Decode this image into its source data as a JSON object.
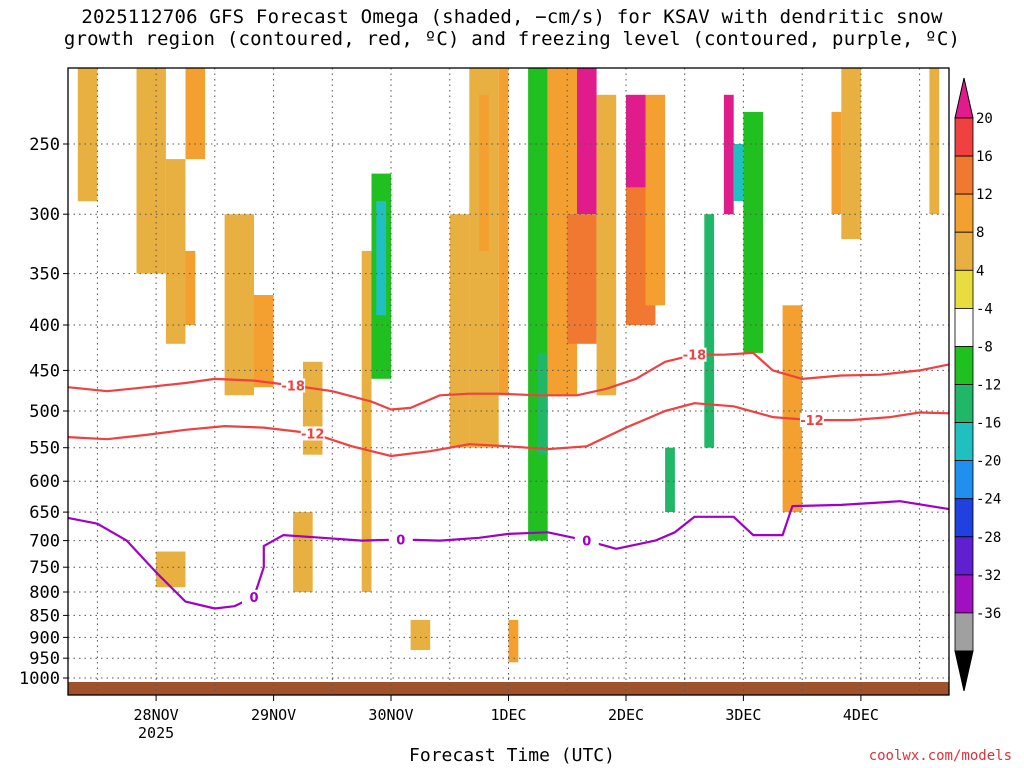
{
  "title": {
    "line1": "2025112706 GFS Forecast Omega (shaded, −cm/s) for KSAV with dendritic snow",
    "line2": "growth region (contoured, red, ºC) and freezing level (contoured, purple, ºC)"
  },
  "credit": "coolwx.com/models",
  "chart_data": {
    "type": "heatmap",
    "xlabel": "Forecast Time (UTC)",
    "ylabel": "",
    "x_ticks": [
      {
        "label": "28NOV",
        "sublabel": "2025",
        "time": "2025-11-28T00"
      },
      {
        "label": "29NOV",
        "sublabel": "",
        "time": "2025-11-29T00"
      },
      {
        "label": "30NOV",
        "sublabel": "",
        "time": "2025-11-30T00"
      },
      {
        "label": "1DEC",
        "sublabel": "",
        "time": "2025-12-01T00"
      },
      {
        "label": "2DEC",
        "sublabel": "",
        "time": "2025-12-02T00"
      },
      {
        "label": "3DEC",
        "sublabel": "",
        "time": "2025-12-03T00"
      },
      {
        "label": "4DEC",
        "sublabel": "",
        "time": "2025-12-04T00"
      }
    ],
    "xlim": [
      "2025-11-27T06",
      "2025-12-04T18"
    ],
    "y_ticks": [
      250,
      300,
      350,
      400,
      450,
      500,
      550,
      600,
      650,
      700,
      750,
      800,
      850,
      900,
      950,
      1000
    ],
    "ylim": [
      200,
      1020
    ],
    "y_scale": "log-pressure",
    "grid": true,
    "colorbar": {
      "labels": [
        "20",
        "16",
        "12",
        "8",
        "4",
        "-4",
        "-8",
        "-12",
        "-16",
        "-20",
        "-24",
        "-28",
        "-32",
        "-36"
      ],
      "bins": [
        {
          "color": "#e01c8c"
        },
        {
          "color": "#f04040"
        },
        {
          "color": "#f07830"
        },
        {
          "color": "#f4a030"
        },
        {
          "color": "#e8b040"
        },
        {
          "color": "#e8dc40"
        },
        {
          "color": "#ffffff"
        },
        {
          "color": "#20c020"
        },
        {
          "color": "#20b868"
        },
        {
          "color": "#20c0c0"
        },
        {
          "color": "#2090f0"
        },
        {
          "color": "#2040e0"
        },
        {
          "color": "#6020d0"
        },
        {
          "color": "#a010c0"
        },
        {
          "color": "#a0a0a0"
        }
      ],
      "top_arrow_color": "#e01c8c",
      "bottom_arrow_color": "#000000"
    },
    "omega_cells": [
      {
        "t0": "2025-11-27T08",
        "t1": "2025-11-27T12",
        "p0": 205,
        "p1": 290,
        "value": 6
      },
      {
        "t0": "2025-11-27T14",
        "t1": "2025-11-27T18",
        "p0": 260,
        "p1": 320,
        "value": -6
      },
      {
        "t0": "2025-11-27T20",
        "t1": "2025-11-28T02",
        "p0": 200,
        "p1": 350,
        "value": 7
      },
      {
        "t0": "2025-11-28T02",
        "t1": "2025-11-28T06",
        "p0": 260,
        "p1": 420,
        "value": 6
      },
      {
        "t0": "2025-11-28T06",
        "t1": "2025-11-28T08",
        "p0": 330,
        "p1": 400,
        "value": 10
      },
      {
        "t0": "2025-11-28T06",
        "t1": "2025-11-28T10",
        "p0": 200,
        "p1": 260,
        "value": 10
      },
      {
        "t0": "2025-11-27T10",
        "t1": "2025-11-27T14",
        "p0": 610,
        "p1": 720,
        "value": -6
      },
      {
        "t0": "2025-11-27T06",
        "t1": "2025-11-27T08",
        "p0": 430,
        "p1": 560,
        "value": -7
      },
      {
        "t0": "2025-11-28T00",
        "t1": "2025-11-28T06",
        "p0": 720,
        "p1": 790,
        "value": 6
      },
      {
        "t0": "2025-11-28T20",
        "t1": "2025-11-29T00",
        "p0": 370,
        "p1": 470,
        "value": 8
      },
      {
        "t0": "2025-11-28T14",
        "t1": "2025-11-28T20",
        "p0": 300,
        "p1": 480,
        "value": 6
      },
      {
        "t0": "2025-11-29T06",
        "t1": "2025-11-29T10",
        "p0": 440,
        "p1": 560,
        "value": 6
      },
      {
        "t0": "2025-11-29T14",
        "t1": "2025-11-29T18",
        "p0": 550,
        "p1": 720,
        "value": -6
      },
      {
        "t0": "2025-11-29T20",
        "t1": "2025-11-30T00",
        "p0": 270,
        "p1": 460,
        "value": -10
      },
      {
        "t0": "2025-11-29T21",
        "t1": "2025-11-29T23",
        "p0": 290,
        "p1": 390,
        "value": -18
      },
      {
        "t0": "2025-11-29T18",
        "t1": "2025-11-29T20",
        "p0": 330,
        "p1": 800,
        "value": 6
      },
      {
        "t0": "2025-11-30T02",
        "t1": "2025-11-30T06",
        "p0": 260,
        "p1": 430,
        "value": -6
      },
      {
        "t0": "2025-11-30T12",
        "t1": "2025-11-30T16",
        "p0": 300,
        "p1": 550,
        "value": 5
      },
      {
        "t0": "2025-11-30T16",
        "t1": "2025-11-30T22",
        "p0": 200,
        "p1": 550,
        "value": 7
      },
      {
        "t0": "2025-11-30T18",
        "t1": "2025-11-30T20",
        "p0": 220,
        "p1": 330,
        "value": 10
      },
      {
        "t0": "2025-11-30T22",
        "t1": "2025-12-01T00",
        "p0": 200,
        "p1": 480,
        "value": 8
      },
      {
        "t0": "2025-12-01T00",
        "t1": "2025-12-01T04",
        "p0": 280,
        "p1": 620,
        "value": -7
      },
      {
        "t0": "2025-12-01T04",
        "t1": "2025-12-01T08",
        "p0": 200,
        "p1": 700,
        "value": -9
      },
      {
        "t0": "2025-12-01T06",
        "t1": "2025-12-01T08",
        "p0": 430,
        "p1": 560,
        "value": -14
      },
      {
        "t0": "2025-12-01T08",
        "t1": "2025-12-01T14",
        "p0": 200,
        "p1": 480,
        "value": 8
      },
      {
        "t0": "2025-12-01T14",
        "t1": "2025-12-01T18",
        "p0": 200,
        "p1": 300,
        "value": 20
      },
      {
        "t0": "2025-12-01T12",
        "t1": "2025-12-01T18",
        "p0": 300,
        "p1": 420,
        "value": 12
      },
      {
        "t0": "2025-12-01T18",
        "t1": "2025-12-01T22",
        "p0": 220,
        "p1": 480,
        "value": 7
      },
      {
        "t0": "2025-12-01T10",
        "t1": "2025-12-01T14",
        "p0": 500,
        "p1": 720,
        "value": -6
      },
      {
        "t0": "2025-12-02T00",
        "t1": "2025-12-02T04",
        "p0": 220,
        "p1": 280,
        "value": 20
      },
      {
        "t0": "2025-12-02T00",
        "t1": "2025-12-02T06",
        "p0": 280,
        "p1": 400,
        "value": 13
      },
      {
        "t0": "2025-12-02T04",
        "t1": "2025-12-02T08",
        "p0": 220,
        "p1": 380,
        "value": 10
      },
      {
        "t0": "2025-12-02T06",
        "t1": "2025-12-02T10",
        "p0": 520,
        "p1": 950,
        "value": -8
      },
      {
        "t0": "2025-12-02T08",
        "t1": "2025-12-02T10",
        "p0": 550,
        "p1": 650,
        "value": -16
      },
      {
        "t0": "2025-12-02T10",
        "t1": "2025-12-02T14",
        "p0": 650,
        "p1": 950,
        "value": -7
      },
      {
        "t0": "2025-12-02T14",
        "t1": "2025-12-02T20",
        "p0": 200,
        "p1": 330,
        "value": -8
      },
      {
        "t0": "2025-12-02T16",
        "t1": "2025-12-02T18",
        "p0": 300,
        "p1": 550,
        "value": -14
      },
      {
        "t0": "2025-12-02T20",
        "t1": "2025-12-02T22",
        "p0": 220,
        "p1": 300,
        "value": 20
      },
      {
        "t0": "2025-12-02T22",
        "t1": "2025-12-03T00",
        "p0": 250,
        "p1": 290,
        "value": -20
      },
      {
        "t0": "2025-12-03T00",
        "t1": "2025-12-03T04",
        "p0": 230,
        "p1": 430,
        "value": -12
      },
      {
        "t0": "2025-12-03T08",
        "t1": "2025-12-03T12",
        "p0": 380,
        "p1": 650,
        "value": 9
      },
      {
        "t0": "2025-12-03T12",
        "t1": "2025-12-03T16",
        "p0": 400,
        "p1": 540,
        "value": -7
      },
      {
        "t0": "2025-12-03T20",
        "t1": "2025-12-04T00",
        "p0": 200,
        "p1": 320,
        "value": 6
      },
      {
        "t0": "2025-12-03T18",
        "t1": "2025-12-03T20",
        "p0": 230,
        "p1": 300,
        "value": 8
      },
      {
        "t0": "2025-12-04T06",
        "t1": "2025-12-04T10",
        "p0": 660,
        "p1": 800,
        "value": -6
      },
      {
        "t0": "2025-12-04T14",
        "t1": "2025-12-04T16",
        "p0": 200,
        "p1": 300,
        "value": 6
      },
      {
        "t0": "2025-12-01T00",
        "t1": "2025-12-01T02",
        "p0": 860,
        "p1": 960,
        "value": 10
      },
      {
        "t0": "2025-11-30T04",
        "t1": "2025-11-30T08",
        "p0": 860,
        "p1": 930,
        "value": 5
      },
      {
        "t0": "2025-11-29T04",
        "t1": "2025-11-29T08",
        "p0": 650,
        "p1": 800,
        "value": 5
      }
    ],
    "dendritic_contours": [
      {
        "label": "-18",
        "color": "#f04040",
        "points": [
          [
            "2025-11-27T06",
            470
          ],
          [
            "2025-11-27T14",
            475
          ],
          [
            "2025-11-27T22",
            470
          ],
          [
            "2025-11-28T06",
            465
          ],
          [
            "2025-11-28T12",
            460
          ],
          [
            "2025-11-28T20",
            462
          ],
          [
            "2025-11-29T04",
            468
          ],
          [
            "2025-11-29T12",
            475
          ],
          [
            "2025-11-29T20",
            488
          ],
          [
            "2025-11-30T00",
            498
          ],
          [
            "2025-11-30T04",
            496
          ],
          [
            "2025-11-30T10",
            480
          ],
          [
            "2025-11-30T16",
            478
          ],
          [
            "2025-11-30T22",
            478
          ],
          [
            "2025-12-01T06",
            480
          ],
          [
            "2025-12-01T14",
            480
          ],
          [
            "2025-12-01T20",
            472
          ],
          [
            "2025-12-02T02",
            460
          ],
          [
            "2025-12-02T08",
            440
          ],
          [
            "2025-12-02T14",
            432
          ],
          [
            "2025-12-02T20",
            432
          ],
          [
            "2025-12-03T02",
            430
          ],
          [
            "2025-12-03T06",
            450
          ],
          [
            "2025-12-03T12",
            460
          ],
          [
            "2025-12-03T20",
            456
          ],
          [
            "2025-12-04T04",
            455
          ],
          [
            "2025-12-04T12",
            450
          ],
          [
            "2025-12-04T18",
            443
          ]
        ]
      },
      {
        "label": "-12",
        "color": "#f04040",
        "points": [
          [
            "2025-11-27T06",
            535
          ],
          [
            "2025-11-27T14",
            538
          ],
          [
            "2025-11-27T22",
            532
          ],
          [
            "2025-11-28T06",
            525
          ],
          [
            "2025-11-28T14",
            520
          ],
          [
            "2025-11-28T22",
            522
          ],
          [
            "2025-11-29T08",
            530
          ],
          [
            "2025-11-29T16",
            548
          ],
          [
            "2025-11-30T00",
            562
          ],
          [
            "2025-11-30T08",
            555
          ],
          [
            "2025-11-30T16",
            545
          ],
          [
            "2025-12-01T00",
            548
          ],
          [
            "2025-12-01T08",
            552
          ],
          [
            "2025-12-01T16",
            548
          ],
          [
            "2025-12-02T00",
            522
          ],
          [
            "2025-12-02T08",
            500
          ],
          [
            "2025-12-02T14",
            490
          ],
          [
            "2025-12-02T22",
            494
          ],
          [
            "2025-12-03T06",
            508
          ],
          [
            "2025-12-03T14",
            512
          ],
          [
            "2025-12-03T22",
            512
          ],
          [
            "2025-12-04T06",
            508
          ],
          [
            "2025-12-04T12",
            502
          ],
          [
            "2025-12-04T18",
            503
          ]
        ]
      }
    ],
    "freezing_level_contours": [
      {
        "label": "0",
        "color": "#a000c8",
        "points": [
          [
            "2025-11-27T06",
            660
          ],
          [
            "2025-11-27T12",
            670
          ],
          [
            "2025-11-27T18",
            700
          ],
          [
            "2025-11-28T00",
            760
          ],
          [
            "2025-11-28T06",
            820
          ],
          [
            "2025-11-28T12",
            835
          ],
          [
            "2025-11-28T16",
            830
          ],
          [
            "2025-11-28T20",
            810
          ],
          [
            "2025-11-28T22",
            750
          ],
          [
            "2025-11-28T22",
            710
          ],
          [
            "2025-11-29T02",
            690
          ],
          [
            "2025-11-29T10",
            695
          ],
          [
            "2025-11-29T18",
            700
          ],
          [
            "2025-11-30T02",
            698
          ],
          [
            "2025-11-30T10",
            700
          ],
          [
            "2025-11-30T18",
            695
          ],
          [
            "2025-12-01T00",
            688
          ],
          [
            "2025-12-01T08",
            685
          ],
          [
            "2025-12-01T16",
            700
          ],
          [
            "2025-12-01T22",
            715
          ],
          [
            "2025-12-02T06",
            700
          ],
          [
            "2025-12-02T10",
            685
          ],
          [
            "2025-12-02T14",
            658
          ],
          [
            "2025-12-02T22",
            658
          ],
          [
            "2025-12-03T02",
            690
          ],
          [
            "2025-12-03T08",
            690
          ],
          [
            "2025-12-03T10",
            640
          ],
          [
            "2025-12-03T20",
            638
          ],
          [
            "2025-12-04T08",
            632
          ],
          [
            "2025-12-04T18",
            645
          ]
        ]
      }
    ]
  }
}
